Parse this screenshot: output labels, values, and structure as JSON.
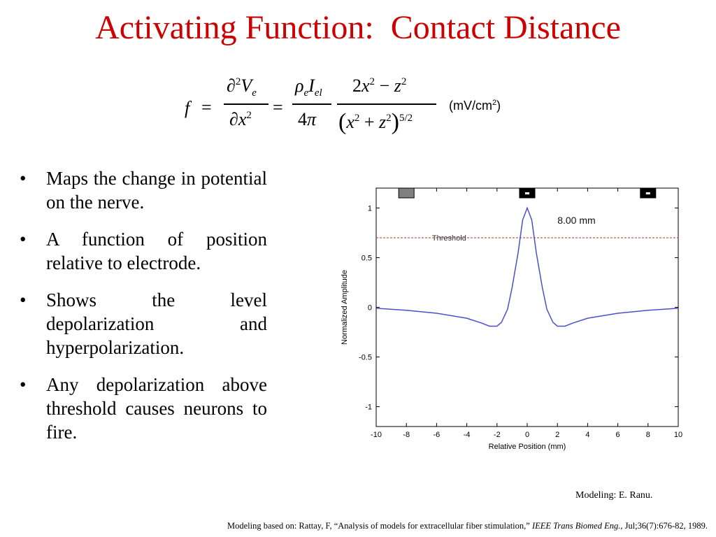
{
  "slide": {
    "title": "Activating Function:  Contact Distance",
    "units": {
      "prefix": "(mV/cm",
      "sup": "2",
      "suffix": ")"
    },
    "bullets": [
      "Maps the change in potential on the nerve.",
      "A function of position relative to electrode.",
      "Shows the level depolarization and hyperpolarization.",
      "Any depolarization above threshold causes neurons to fire."
    ],
    "credit": "Modeling:  E. Ranu.",
    "footer": {
      "prefix": "Modeling based on:  Rattay, F, “Analysis of models for extracellular fiber stimulation,” ",
      "journal": "IEEE Trans Biomed Eng.",
      "suffix": ", Jul;36(7):676-82, 1989."
    }
  },
  "colors": {
    "title": "#cc0000",
    "curve": "#4a50cc",
    "threshold": "#d04040"
  },
  "chart_data": {
    "type": "line",
    "xlabel": "Relative Position (mm)",
    "ylabel": "Normalized Amplitude",
    "xlim": [
      -10,
      10
    ],
    "ylim": [
      -1.2,
      1.2
    ],
    "xticks": [
      -10,
      -8,
      -6,
      -4,
      -2,
      0,
      2,
      4,
      6,
      8,
      10
    ],
    "yticks": [
      1,
      0.5,
      0,
      -0.5,
      -1
    ],
    "annotation": "8.00 mm",
    "threshold": {
      "label": "Threshold",
      "value": 0.7
    },
    "electrodes": [
      {
        "x": -8,
        "style": "gray"
      },
      {
        "x": 0,
        "style": "black"
      },
      {
        "x": 8,
        "style": "black"
      }
    ],
    "series": [
      {
        "x": [
          -10,
          -8,
          -6,
          -4,
          -3,
          -2.5,
          -2,
          -1.7,
          -1.3,
          -1,
          -0.6,
          -0.3,
          0,
          0.3,
          0.6,
          1,
          1.3,
          1.7,
          2,
          2.5,
          3,
          4,
          6,
          8,
          10
        ],
        "values": [
          -0.01,
          -0.03,
          -0.06,
          -0.11,
          -0.16,
          -0.19,
          -0.19,
          -0.15,
          -0.02,
          0.2,
          0.55,
          0.88,
          1.0,
          0.88,
          0.55,
          0.2,
          -0.02,
          -0.15,
          -0.19,
          -0.19,
          -0.16,
          -0.11,
          -0.06,
          -0.03,
          -0.01
        ]
      }
    ]
  }
}
